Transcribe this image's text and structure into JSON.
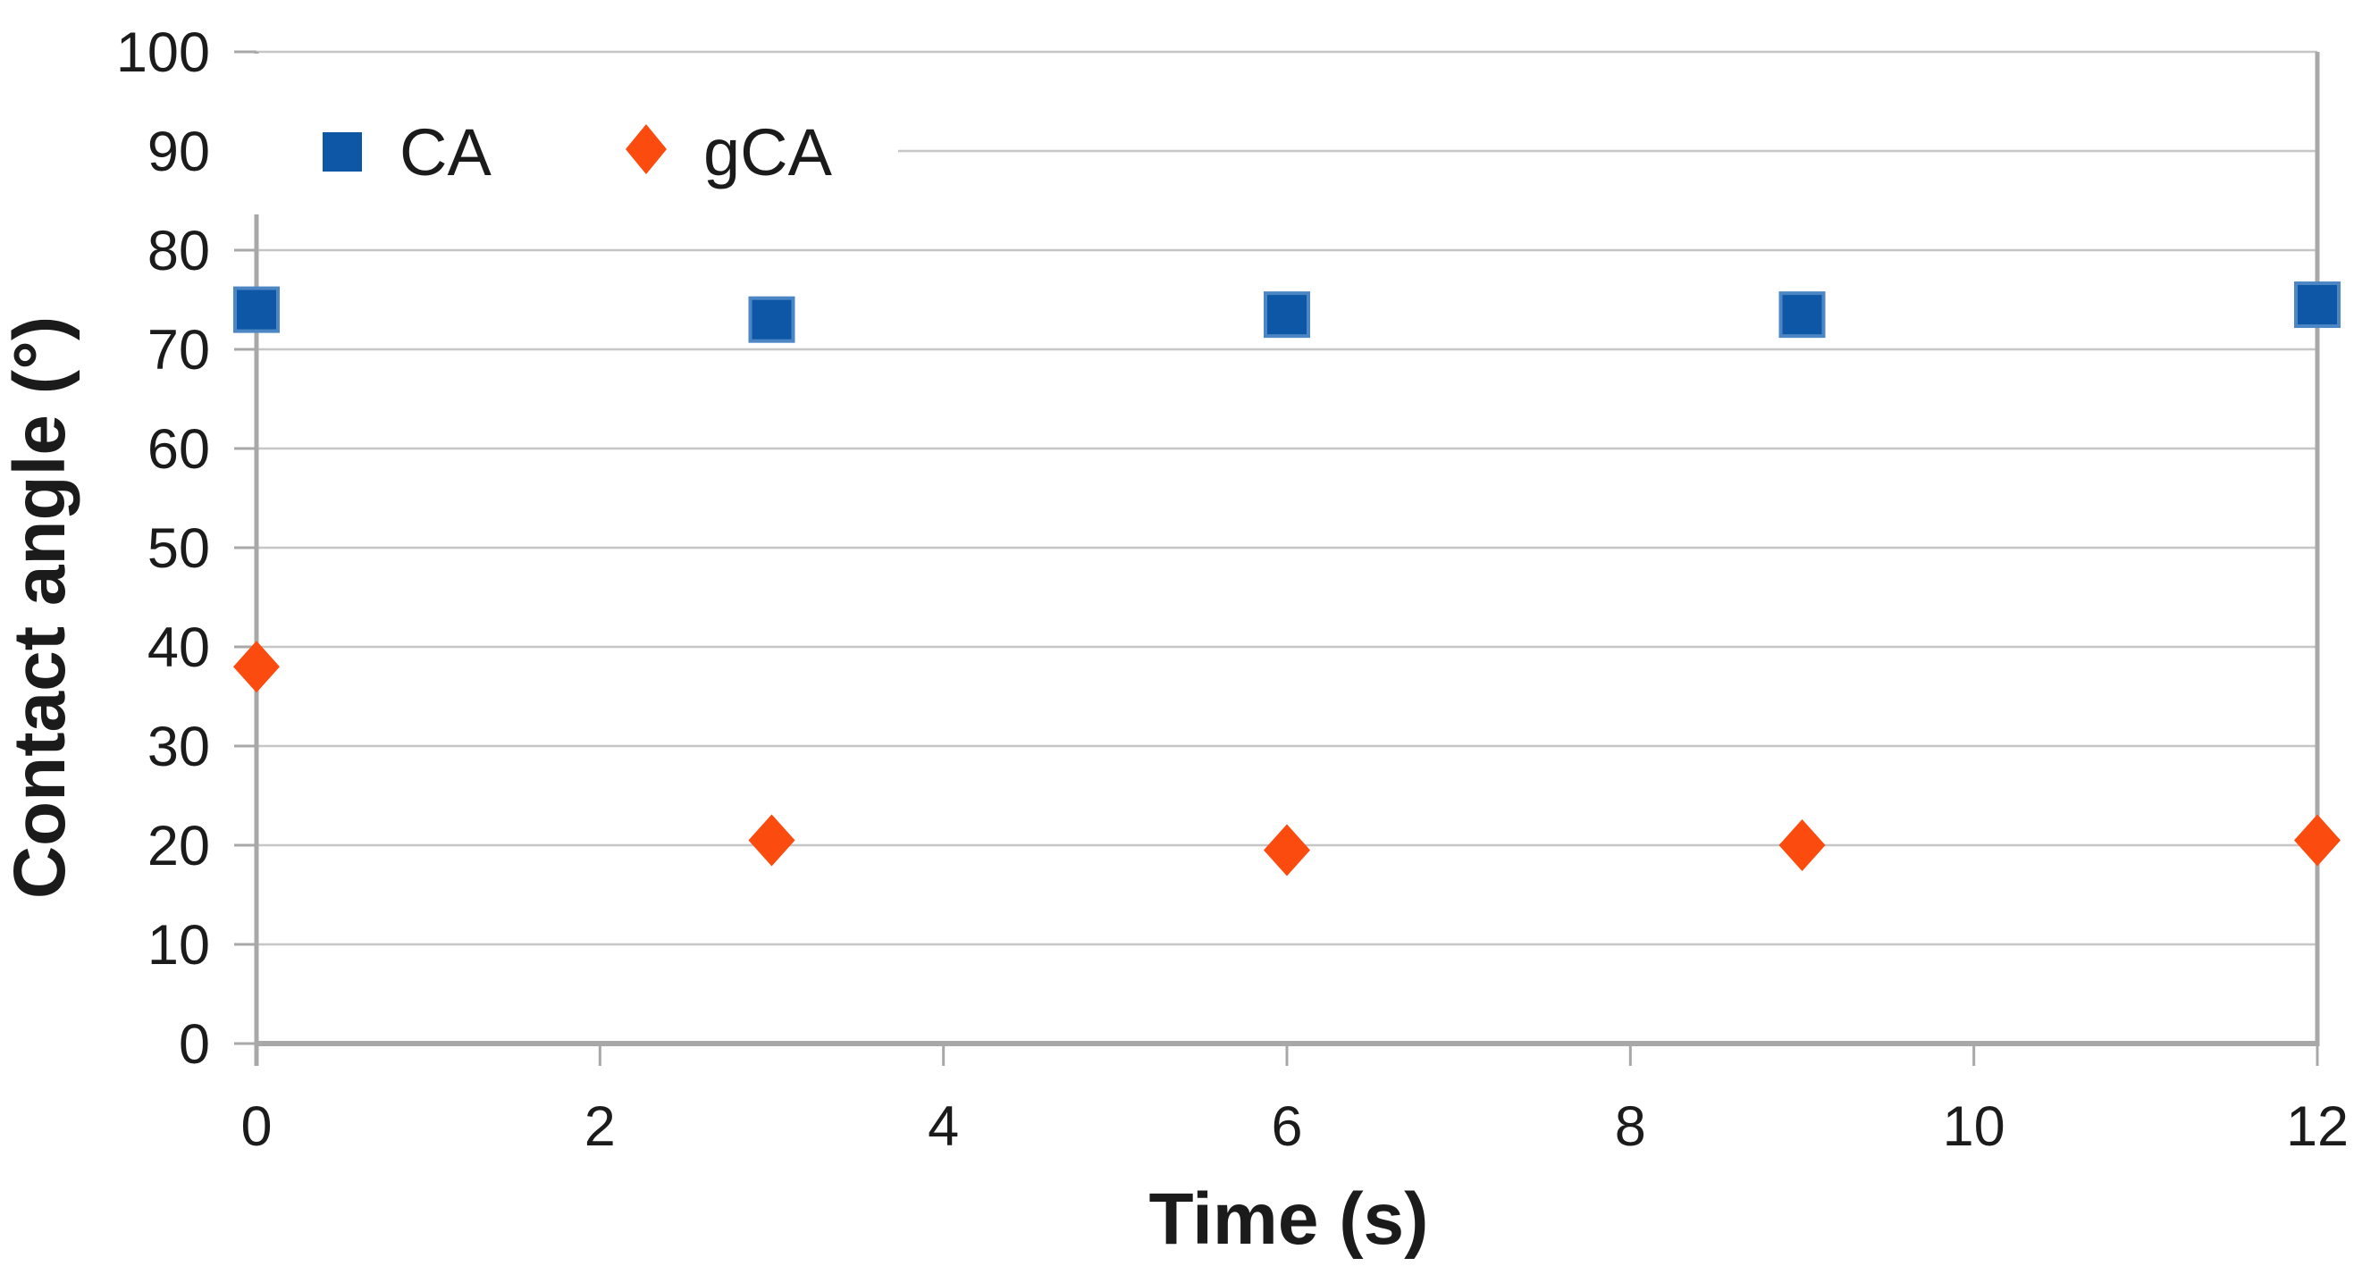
{
  "figure": {
    "background": "#ffffff",
    "description": "Scatter chart of contact angle versus time with two series"
  },
  "palette": {
    "ca_blue": "#0d57a6",
    "ca_blue_edge": "#4d86c4",
    "gca_orange": "#fb4b0e",
    "grid_color": "#c6c6c6",
    "axis_color": "#a8a8a8",
    "text_color": "#1b1b1b"
  },
  "chart_data": {
    "type": "scatter",
    "title": "",
    "xlabel": "Time (s)",
    "ylabel": "Contact angle (°)",
    "xlim": [
      0,
      12
    ],
    "ylim": [
      0,
      100
    ],
    "x_ticks": [
      0,
      2,
      4,
      6,
      8,
      10,
      12
    ],
    "y_ticks": [
      0,
      10,
      20,
      30,
      40,
      50,
      60,
      70,
      80,
      90,
      100
    ],
    "grid": "horizontal-only",
    "legend_position": "top-left-inside",
    "series": [
      {
        "name": "CA",
        "marker": "square",
        "color": "#0d57a6",
        "x": [
          0,
          3,
          6,
          9,
          12
        ],
        "y": [
          74,
          73,
          73.5,
          73.5,
          74.5
        ]
      },
      {
        "name": "gCA",
        "marker": "diamond",
        "color": "#fb4b0e",
        "x": [
          0,
          3,
          6,
          9,
          12
        ],
        "y": [
          38,
          20.5,
          19.5,
          20,
          20.5
        ]
      }
    ]
  }
}
